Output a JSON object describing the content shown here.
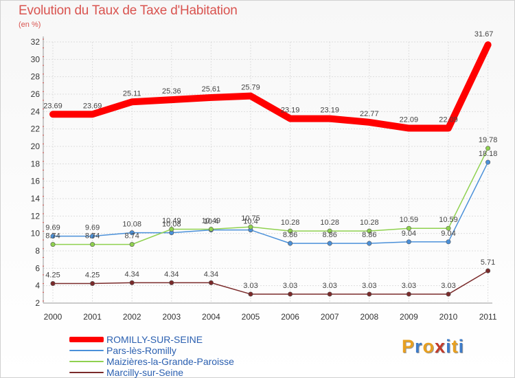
{
  "colors": {
    "title": "#d9534f",
    "axis_text": "#333333",
    "grid": "#dddddd",
    "legend_text": "#2a5fb0",
    "logo": [
      "#e8a020",
      "#3d7bc8",
      "#e8a020",
      "#c23a2a",
      "#3d7bc8",
      "#e8a020",
      "#3d7bc8"
    ]
  },
  "logo_text": "Proxiti",
  "chart_data": {
    "type": "line",
    "title": "Evolution du Taux de Taxe d'Habitation",
    "subtitle": "(en %)",
    "xlabel": "",
    "ylabel": "",
    "x": [
      "2000",
      "2001",
      "2002",
      "2003",
      "2004",
      "2005",
      "2006",
      "2007",
      "2008",
      "2009",
      "2010",
      "2011"
    ],
    "ylim": [
      2,
      32
    ],
    "yticks": [
      2,
      4,
      6,
      8,
      10,
      12,
      14,
      16,
      18,
      20,
      22,
      24,
      26,
      28,
      30,
      32
    ],
    "grid": true,
    "legend_position": "bottom-left",
    "series": [
      {
        "name": "ROMILLY-SUR-SEINE",
        "color": "#ff0000",
        "values": [
          23.69,
          23.69,
          25.11,
          25.36,
          25.61,
          25.79,
          23.19,
          23.19,
          22.77,
          22.09,
          22.09,
          31.67
        ],
        "labels": [
          "23.69",
          "23.69",
          "25.11",
          "25.36",
          "25.61",
          "25.79",
          "23.19",
          "23.19",
          "22.77",
          "22.09",
          "22.09",
          "31.67"
        ]
      },
      {
        "name": "Pars-lès-Romilly",
        "color": "#4a90d9",
        "values": [
          9.69,
          9.69,
          10.08,
          10.08,
          10.4,
          10.4,
          8.86,
          8.86,
          8.86,
          9.04,
          9.04,
          18.18
        ],
        "labels": [
          "9.69",
          "9.69",
          "10.08",
          "10.08",
          "10.4",
          "10.4",
          "8.86",
          "8.86",
          "8.86",
          "9.04",
          "9.04",
          "18.18"
        ]
      },
      {
        "name": "Maizières-la-Grande-Paroisse",
        "color": "#8fd14f",
        "values": [
          8.74,
          8.74,
          8.74,
          10.49,
          10.49,
          10.75,
          10.28,
          10.28,
          10.28,
          10.59,
          10.59,
          19.78
        ],
        "labels": [
          "8.74",
          "8.74",
          "8.74",
          "10.49",
          "10.49",
          "10.75",
          "10.28",
          "10.28",
          "10.28",
          "10.59",
          "10.59",
          "19.78"
        ]
      },
      {
        "name": "Marcilly-sur-Seine",
        "color": "#7a2a2a",
        "values": [
          4.25,
          4.25,
          4.34,
          4.34,
          4.34,
          3.03,
          3.03,
          3.03,
          3.03,
          3.03,
          3.03,
          5.71
        ],
        "labels": [
          "4.25",
          "4.25",
          "4.34",
          "4.34",
          "4.34",
          "3.03",
          "3.03",
          "3.03",
          "3.03",
          "3.03",
          "3.03",
          "5.71"
        ]
      }
    ]
  }
}
